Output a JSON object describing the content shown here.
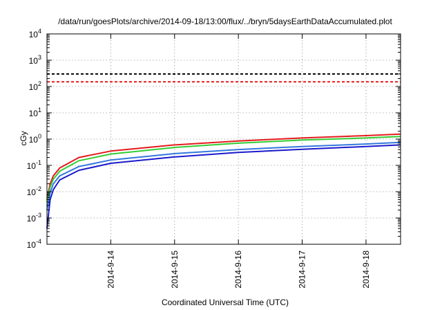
{
  "chart_data": {
    "type": "line",
    "title": "/data/run/goesPlots/archive/2014-09-18/13:00/flux/../bryn/5daysEarthDataAccumulated.plot",
    "xlabel": "Coordinated Universal Time (UTC)",
    "ylabel": "cGy",
    "x_scale": "time",
    "xlim": [
      "2014-09-13T00:00",
      "2014-09-18T13:00"
    ],
    "x_ticks": [
      "2014-9-14",
      "2014-9-15",
      "2014-9-16",
      "2014-9-17",
      "2014-9-18"
    ],
    "y_scale": "log",
    "ylim": [
      0.0001,
      10000
    ],
    "y_ticks": [
      {
        "base": "10",
        "exp": "-4"
      },
      {
        "base": "10",
        "exp": "-3"
      },
      {
        "base": "10",
        "exp": "-2"
      },
      {
        "base": "10",
        "exp": "-1"
      },
      {
        "base": "10",
        "exp": "0"
      },
      {
        "base": "10",
        "exp": "1"
      },
      {
        "base": "10",
        "exp": "2"
      },
      {
        "base": "10",
        "exp": "3"
      },
      {
        "base": "10",
        "exp": "4"
      }
    ],
    "grid": true,
    "thresholds": [
      {
        "value": 300,
        "color": "#000000",
        "style": "dashed"
      },
      {
        "value": 150,
        "color": "#e41a1c",
        "style": "dashed"
      }
    ],
    "series": [
      {
        "color": "#e41a1c",
        "x": [
          "2014-09-13T00:00",
          "2014-09-13T01:12",
          "2014-09-13T02:24",
          "2014-09-13T04:48",
          "2014-09-13T12:00",
          "2014-09-14T00:00",
          "2014-09-15T00:00",
          "2014-09-16T00:00",
          "2014-09-17T00:00",
          "2014-09-18T00:00",
          "2014-09-18T13:00"
        ],
        "y": [
          0.005,
          0.02,
          0.04,
          0.08,
          0.2,
          0.35,
          0.6,
          0.85,
          1.1,
          1.35,
          1.55
        ]
      },
      {
        "color": "#33cc33",
        "x": [
          "2014-09-13T00:00",
          "2014-09-13T01:12",
          "2014-09-13T02:24",
          "2014-09-13T04:48",
          "2014-09-13T12:00",
          "2014-09-14T00:00",
          "2014-09-15T00:00",
          "2014-09-16T00:00",
          "2014-09-17T00:00",
          "2014-09-18T00:00",
          "2014-09-18T13:00"
        ],
        "y": [
          0.004,
          0.015,
          0.03,
          0.06,
          0.15,
          0.27,
          0.48,
          0.7,
          0.92,
          1.1,
          1.25
        ]
      },
      {
        "color": "#3377dd",
        "x": [
          "2014-09-13T00:00",
          "2014-09-13T01:12",
          "2014-09-13T02:24",
          "2014-09-13T04:48",
          "2014-09-13T12:00",
          "2014-09-14T00:00",
          "2014-09-15T00:00",
          "2014-09-16T00:00",
          "2014-09-17T00:00",
          "2014-09-18T00:00",
          "2014-09-18T13:00"
        ],
        "y": [
          0.002,
          0.009,
          0.02,
          0.04,
          0.09,
          0.16,
          0.28,
          0.4,
          0.52,
          0.65,
          0.75
        ]
      },
      {
        "color": "#1a1acc",
        "x": [
          "2014-09-13T00:00",
          "2014-09-13T01:12",
          "2014-09-13T02:24",
          "2014-09-13T04:48",
          "2014-09-13T12:00",
          "2014-09-14T00:00",
          "2014-09-15T00:00",
          "2014-09-16T00:00",
          "2014-09-17T00:00",
          "2014-09-18T00:00",
          "2014-09-18T13:00"
        ],
        "y": [
          0.0004,
          0.005,
          0.012,
          0.028,
          0.065,
          0.12,
          0.21,
          0.31,
          0.41,
          0.52,
          0.6
        ]
      }
    ]
  }
}
